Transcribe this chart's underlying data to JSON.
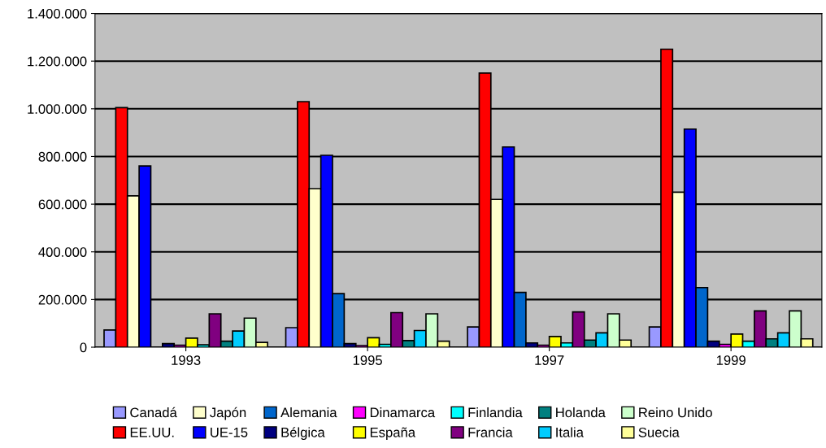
{
  "chart_data": {
    "type": "bar",
    "categories": [
      "1993",
      "1995",
      "1997",
      "1999"
    ],
    "series": [
      {
        "name": "Canadá",
        "color": "#9999ff",
        "values": [
          72000,
          82000,
          85000,
          85000
        ]
      },
      {
        "name": "EE.UU.",
        "color": "#ff0000",
        "values": [
          1005000,
          1030000,
          1150000,
          1250000
        ]
      },
      {
        "name": "Japón",
        "color": "#ffffcc",
        "values": [
          635000,
          665000,
          620000,
          650000
        ]
      },
      {
        "name": "UE-15",
        "color": "#0000ff",
        "values": [
          760000,
          805000,
          840000,
          915000
        ]
      },
      {
        "name": "Alemania",
        "color": "#0066cc",
        "values": [
          null,
          225000,
          230000,
          250000
        ]
      },
      {
        "name": "Bélgica",
        "color": "#000080",
        "values": [
          15000,
          15000,
          18000,
          25000
        ]
      },
      {
        "name": "Dinamarca",
        "color": "#ff00ff",
        "values": [
          8000,
          7000,
          8000,
          12000
        ]
      },
      {
        "name": "España",
        "color": "#ffff00",
        "values": [
          38000,
          40000,
          45000,
          55000
        ]
      },
      {
        "name": "Finlandia",
        "color": "#00ffff",
        "values": [
          10000,
          12000,
          18000,
          25000
        ]
      },
      {
        "name": "Francia",
        "color": "#800080",
        "values": [
          140000,
          145000,
          148000,
          152000
        ]
      },
      {
        "name": "Holanda",
        "color": "#008080",
        "values": [
          25000,
          28000,
          30000,
          35000
        ]
      },
      {
        "name": "Italia",
        "color": "#00ccff",
        "values": [
          68000,
          70000,
          60000,
          60000
        ]
      },
      {
        "name": "Reino Unido",
        "color": "#ccffcc",
        "values": [
          122000,
          140000,
          140000,
          152000
        ]
      },
      {
        "name": "Suecia",
        "color": "#ffff99",
        "values": [
          20000,
          25000,
          30000,
          35000
        ]
      }
    ],
    "ylim": [
      0,
      1400000
    ],
    "yticks": [
      0,
      {
        "value": 200000,
        "label": "200.000"
      },
      {
        "value": 400000,
        "label": "400.000"
      },
      {
        "value": 600000,
        "label": "600.000"
      },
      {
        "value": 800000,
        "label": "800.000"
      },
      {
        "value": 1000000,
        "label": "1.000.000"
      },
      {
        "value": 1200000,
        "label": "1.200.000"
      },
      {
        "value": 1400000,
        "label": "1.400.000"
      }
    ],
    "grid": "y",
    "legend": "bottom"
  }
}
